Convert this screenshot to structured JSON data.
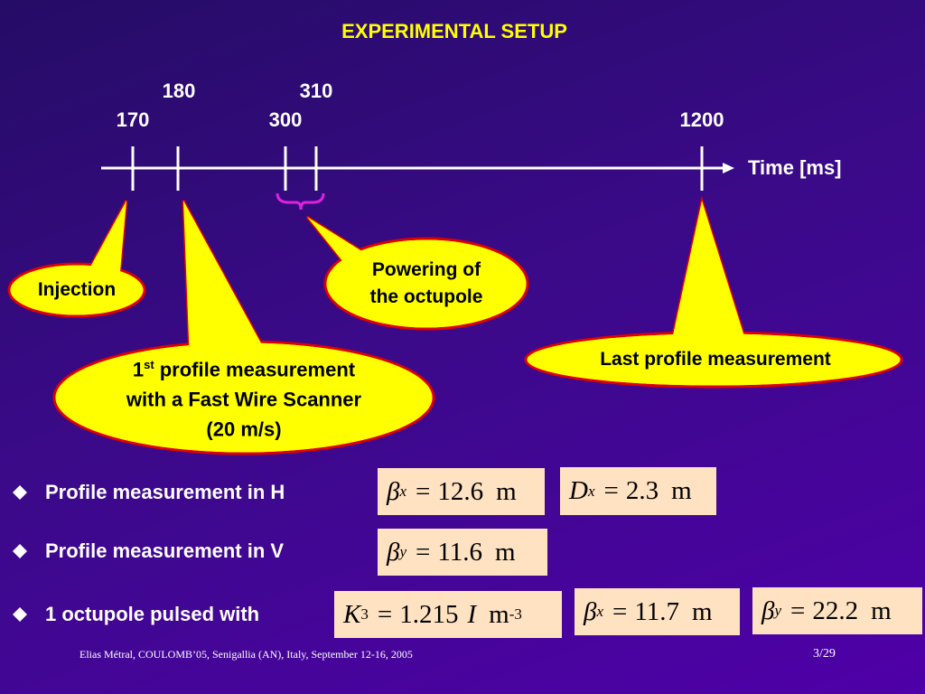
{
  "title": "EXPERIMENTAL SETUP",
  "timeline": {
    "ticks": [
      170,
      180,
      300,
      310,
      1200
    ],
    "axis_label": "Time [ms]"
  },
  "callouts": {
    "injection": {
      "lines": [
        "Injection"
      ]
    },
    "powering": {
      "lines": [
        "Powering of",
        "the octupole"
      ]
    },
    "first_profile": {
      "first_line": {
        "number": "1",
        "sup": "st",
        "rest": "profile measurement"
      },
      "lines": [
        "with a Fast Wire Scanner",
        "(20 m/s)"
      ]
    },
    "last_profile": {
      "lines": [
        "Last profile measurement"
      ]
    }
  },
  "bullets": [
    "Profile measurement in H",
    "Profile measurement in V",
    "1 octupole pulsed with"
  ],
  "formulas": [
    {
      "symbol": "β",
      "sub": "x",
      "op": "=",
      "value": 12.6,
      "unit": "m"
    },
    {
      "symbol": "D",
      "sub": "x",
      "op": "=",
      "value": 2.3,
      "unit": "m"
    },
    {
      "symbol": "β",
      "sub": "y",
      "op": "=",
      "value": 11.6,
      "unit": "m"
    },
    {
      "symbol": "K",
      "sub": "3",
      "op": "=",
      "value": 1.215,
      "variable": "I",
      "unit": "m",
      "exponent": -3
    },
    {
      "symbol": "β",
      "sub": "x",
      "op": "=",
      "value": 11.7,
      "unit": "m"
    },
    {
      "symbol": "β",
      "sub": "y",
      "op": "=",
      "value": 22.2,
      "unit": "m"
    }
  ],
  "footer": {
    "text": "Elias Métral, COULOMB’05, Senigallia (AN), Italy, September 12-16, 2005",
    "page": "3/29"
  }
}
